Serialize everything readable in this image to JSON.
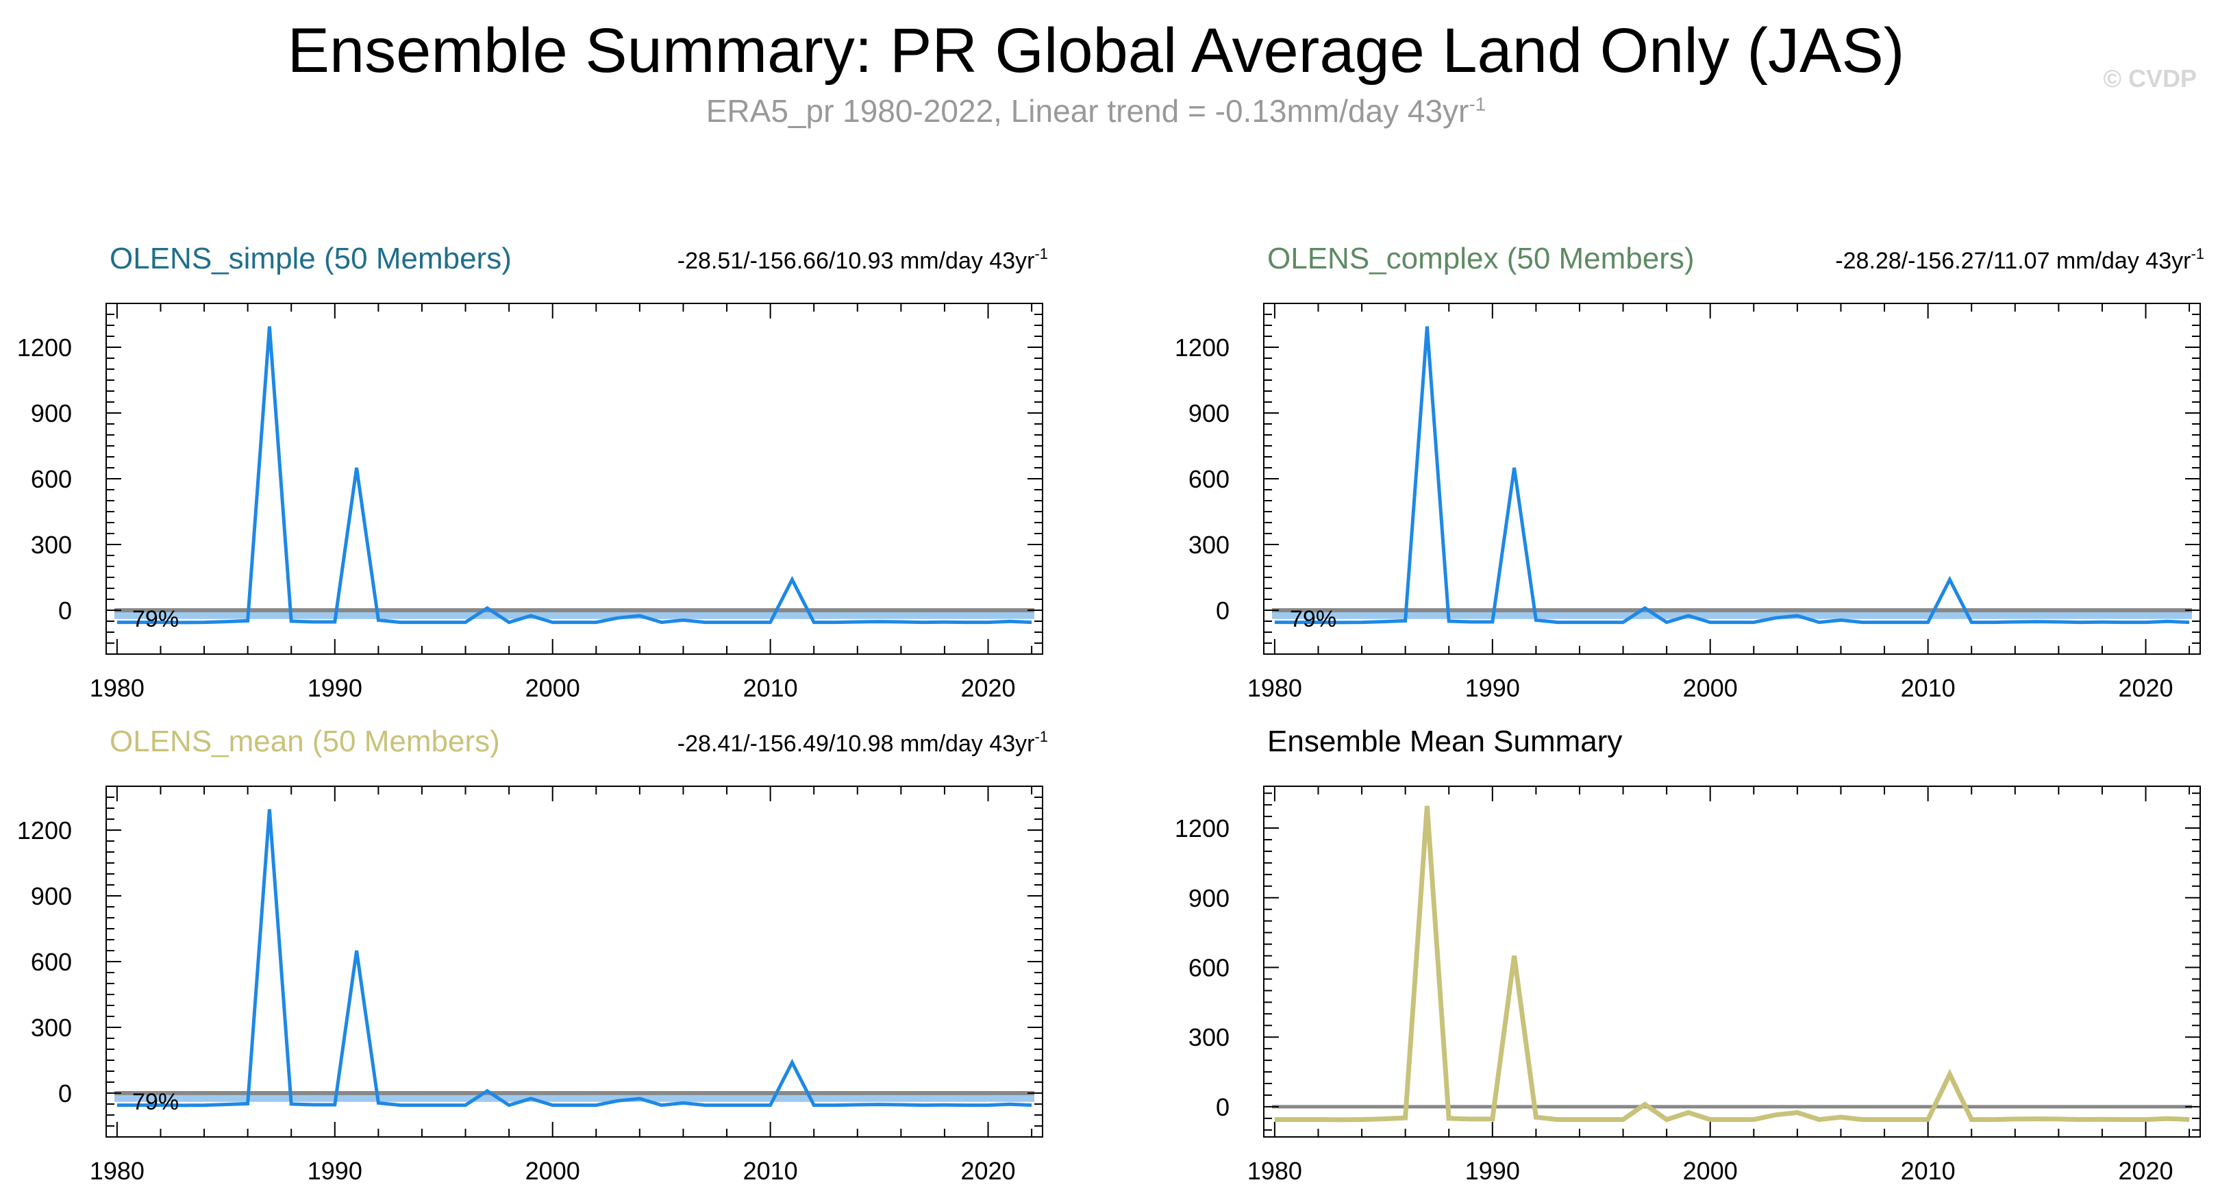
{
  "title": "Ensemble Summary: PR Global Average Land Only (JAS)",
  "subtitle": {
    "text": "ERA5_pr 1980-2022, Linear trend = -0.13mm/day 43yr",
    "superscript": "-1"
  },
  "watermark": "© CVDP",
  "colors": {
    "panel_title_simple": "#1f6f8b",
    "panel_title_complex": "#5e8a63",
    "panel_title_mean": "#c9c27a",
    "series_line": "#1e88e5",
    "spread_band": "#9ec9ef",
    "reference_line": "#888888",
    "mean_line": "#c8c27a"
  },
  "chart_data": [
    {
      "type": "line",
      "panel_title": "OLENS_simple (50 Members)",
      "title_color": "#1f6f8b",
      "stats_text": "-28.51/-156.66/10.93 mm/day 43yr",
      "stats_sup": "-1",
      "percent_label": "79%",
      "ylim": [
        -200,
        1400
      ],
      "yticks": [
        0,
        300,
        600,
        900,
        1200
      ],
      "yticklabels": [
        "0",
        "300",
        "600",
        "900",
        "1200"
      ],
      "xlim": [
        1979.5,
        2022.5
      ],
      "xticks": [
        1980,
        1990,
        2000,
        2010,
        2020
      ],
      "xticklabels": [
        "1980",
        "1990",
        "2000",
        "2010",
        "2020"
      ],
      "reference": 0,
      "band": [
        -40,
        0
      ],
      "series": [
        {
          "name": "ERA5_pr",
          "x": [
            1980,
            1981,
            1982,
            1983,
            1984,
            1985,
            1986,
            1987,
            1988,
            1989,
            1990,
            1991,
            1992,
            1993,
            1994,
            1995,
            1996,
            1997,
            1998,
            1999,
            2000,
            2001,
            2002,
            2003,
            2004,
            2005,
            2006,
            2007,
            2008,
            2009,
            2010,
            2011,
            2012,
            2013,
            2014,
            2015,
            2016,
            2017,
            2018,
            2019,
            2020,
            2021,
            2022
          ],
          "values": [
            -55,
            -55,
            -55,
            -56,
            -55,
            -52,
            -48,
            1295,
            -50,
            -53,
            -53,
            650,
            -45,
            -55,
            -55,
            -55,
            -55,
            10,
            -55,
            -25,
            -55,
            -55,
            -55,
            -35,
            -25,
            -55,
            -45,
            -55,
            -55,
            -55,
            -55,
            140,
            -55,
            -55,
            -53,
            -52,
            -53,
            -55,
            -54,
            -55,
            -55,
            -51,
            -55
          ]
        }
      ]
    },
    {
      "type": "line",
      "panel_title": "OLENS_complex (50 Members)",
      "title_color": "#5e8a63",
      "stats_text": "-28.28/-156.27/11.07 mm/day 43yr",
      "stats_sup": "-1",
      "percent_label": "79%",
      "ylim": [
        -200,
        1400
      ],
      "yticks": [
        0,
        300,
        600,
        900,
        1200
      ],
      "yticklabels": [
        "0",
        "300",
        "600",
        "900",
        "1200"
      ],
      "xlim": [
        1979.5,
        2022.5
      ],
      "xticks": [
        1980,
        1990,
        2000,
        2010,
        2020
      ],
      "xticklabels": [
        "1980",
        "1990",
        "2000",
        "2010",
        "2020"
      ],
      "reference": 0,
      "band": [
        -40,
        0
      ],
      "series": [
        {
          "name": "ERA5_pr",
          "x": [
            1980,
            1981,
            1982,
            1983,
            1984,
            1985,
            1986,
            1987,
            1988,
            1989,
            1990,
            1991,
            1992,
            1993,
            1994,
            1995,
            1996,
            1997,
            1998,
            1999,
            2000,
            2001,
            2002,
            2003,
            2004,
            2005,
            2006,
            2007,
            2008,
            2009,
            2010,
            2011,
            2012,
            2013,
            2014,
            2015,
            2016,
            2017,
            2018,
            2019,
            2020,
            2021,
            2022
          ],
          "values": [
            -55,
            -55,
            -55,
            -56,
            -55,
            -52,
            -48,
            1295,
            -50,
            -53,
            -53,
            650,
            -45,
            -55,
            -55,
            -55,
            -55,
            10,
            -55,
            -25,
            -55,
            -55,
            -55,
            -35,
            -25,
            -55,
            -45,
            -55,
            -55,
            -55,
            -55,
            140,
            -55,
            -55,
            -53,
            -52,
            -53,
            -55,
            -54,
            -55,
            -55,
            -51,
            -55
          ]
        }
      ]
    },
    {
      "type": "line",
      "panel_title": "OLENS_mean (50 Members)",
      "title_color": "#c9c27a",
      "stats_text": "-28.41/-156.49/10.98 mm/day 43yr",
      "stats_sup": "-1",
      "percent_label": "79%",
      "ylim": [
        -200,
        1400
      ],
      "yticks": [
        0,
        300,
        600,
        900,
        1200
      ],
      "yticklabels": [
        "0",
        "300",
        "600",
        "900",
        "1200"
      ],
      "xlim": [
        1979.5,
        2022.5
      ],
      "xticks": [
        1980,
        1990,
        2000,
        2010,
        2020
      ],
      "xticklabels": [
        "1980",
        "1990",
        "2000",
        "2010",
        "2020"
      ],
      "reference": 0,
      "band": [
        -40,
        0
      ],
      "series": [
        {
          "name": "ERA5_pr",
          "x": [
            1980,
            1981,
            1982,
            1983,
            1984,
            1985,
            1986,
            1987,
            1988,
            1989,
            1990,
            1991,
            1992,
            1993,
            1994,
            1995,
            1996,
            1997,
            1998,
            1999,
            2000,
            2001,
            2002,
            2003,
            2004,
            2005,
            2006,
            2007,
            2008,
            2009,
            2010,
            2011,
            2012,
            2013,
            2014,
            2015,
            2016,
            2017,
            2018,
            2019,
            2020,
            2021,
            2022
          ],
          "values": [
            -55,
            -55,
            -55,
            -56,
            -55,
            -52,
            -48,
            1295,
            -50,
            -53,
            -53,
            650,
            -45,
            -55,
            -55,
            -55,
            -55,
            10,
            -55,
            -25,
            -55,
            -55,
            -55,
            -35,
            -25,
            -55,
            -45,
            -55,
            -55,
            -55,
            -55,
            140,
            -55,
            -55,
            -53,
            -52,
            -53,
            -55,
            -54,
            -55,
            -55,
            -51,
            -55
          ]
        }
      ]
    },
    {
      "type": "line",
      "panel_title": "Ensemble Mean Summary",
      "title_color": "#000000",
      "ylim": [
        -130,
        1380
      ],
      "yticks": [
        0,
        300,
        600,
        900,
        1200
      ],
      "yticklabels": [
        "0",
        "300",
        "600",
        "900",
        "1200"
      ],
      "xlim": [
        1979.5,
        2022.5
      ],
      "xticks": [
        1980,
        1990,
        2000,
        2010,
        2020
      ],
      "xticklabels": [
        "1980",
        "1990",
        "2000",
        "2010",
        "2020"
      ],
      "reference": 0,
      "series": [
        {
          "name": "OLENS_mean",
          "x": [
            1980,
            1981,
            1982,
            1983,
            1984,
            1985,
            1986,
            1987,
            1988,
            1989,
            1990,
            1991,
            1992,
            1993,
            1994,
            1995,
            1996,
            1997,
            1998,
            1999,
            2000,
            2001,
            2002,
            2003,
            2004,
            2005,
            2006,
            2007,
            2008,
            2009,
            2010,
            2011,
            2012,
            2013,
            2014,
            2015,
            2016,
            2017,
            2018,
            2019,
            2020,
            2021,
            2022
          ],
          "values": [
            -55,
            -55,
            -55,
            -56,
            -55,
            -52,
            -48,
            1295,
            -50,
            -53,
            -53,
            650,
            -45,
            -55,
            -55,
            -55,
            -55,
            10,
            -55,
            -25,
            -55,
            -55,
            -55,
            -35,
            -25,
            -55,
            -45,
            -55,
            -55,
            -55,
            -55,
            140,
            -55,
            -55,
            -53,
            -52,
            -53,
            -55,
            -54,
            -55,
            -55,
            -51,
            -55
          ]
        }
      ]
    }
  ]
}
